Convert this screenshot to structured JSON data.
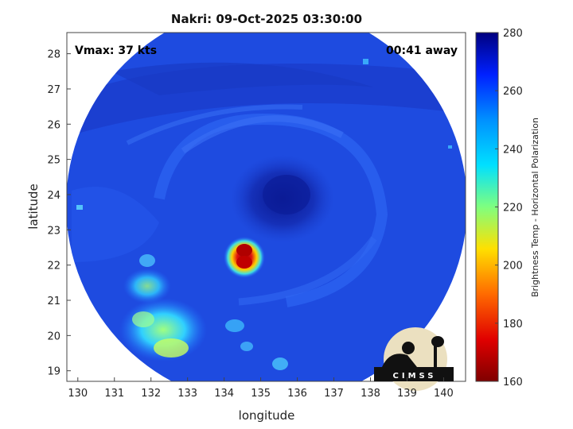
{
  "title": "Nakri: 09-Oct-2025 03:30:00",
  "overlay": {
    "vmax": "Vmax: 37 kts",
    "away": "00:41 away"
  },
  "axes": {
    "xlabel": "longitude",
    "ylabel": "latitude",
    "xlim": [
      129.7,
      140.6
    ],
    "ylim": [
      18.7,
      28.6
    ],
    "xticks": [
      "130",
      "131",
      "132",
      "133",
      "134",
      "135",
      "136",
      "137",
      "138",
      "139",
      "140"
    ],
    "yticks": [
      "19",
      "20",
      "21",
      "22",
      "23",
      "24",
      "25",
      "26",
      "27",
      "28"
    ]
  },
  "colorbar": {
    "label": "Brightness Temp - Horizontal Polarization",
    "range": [
      160,
      280
    ],
    "ticks": [
      "280",
      "260",
      "240",
      "220",
      "200",
      "180",
      "160"
    ]
  },
  "logo": {
    "text": "CIMSS"
  },
  "storm": {
    "center_lon": 135.4,
    "center_lat": 23.9,
    "convection_lon": 134.55,
    "convection_lat": 22.3
  }
}
